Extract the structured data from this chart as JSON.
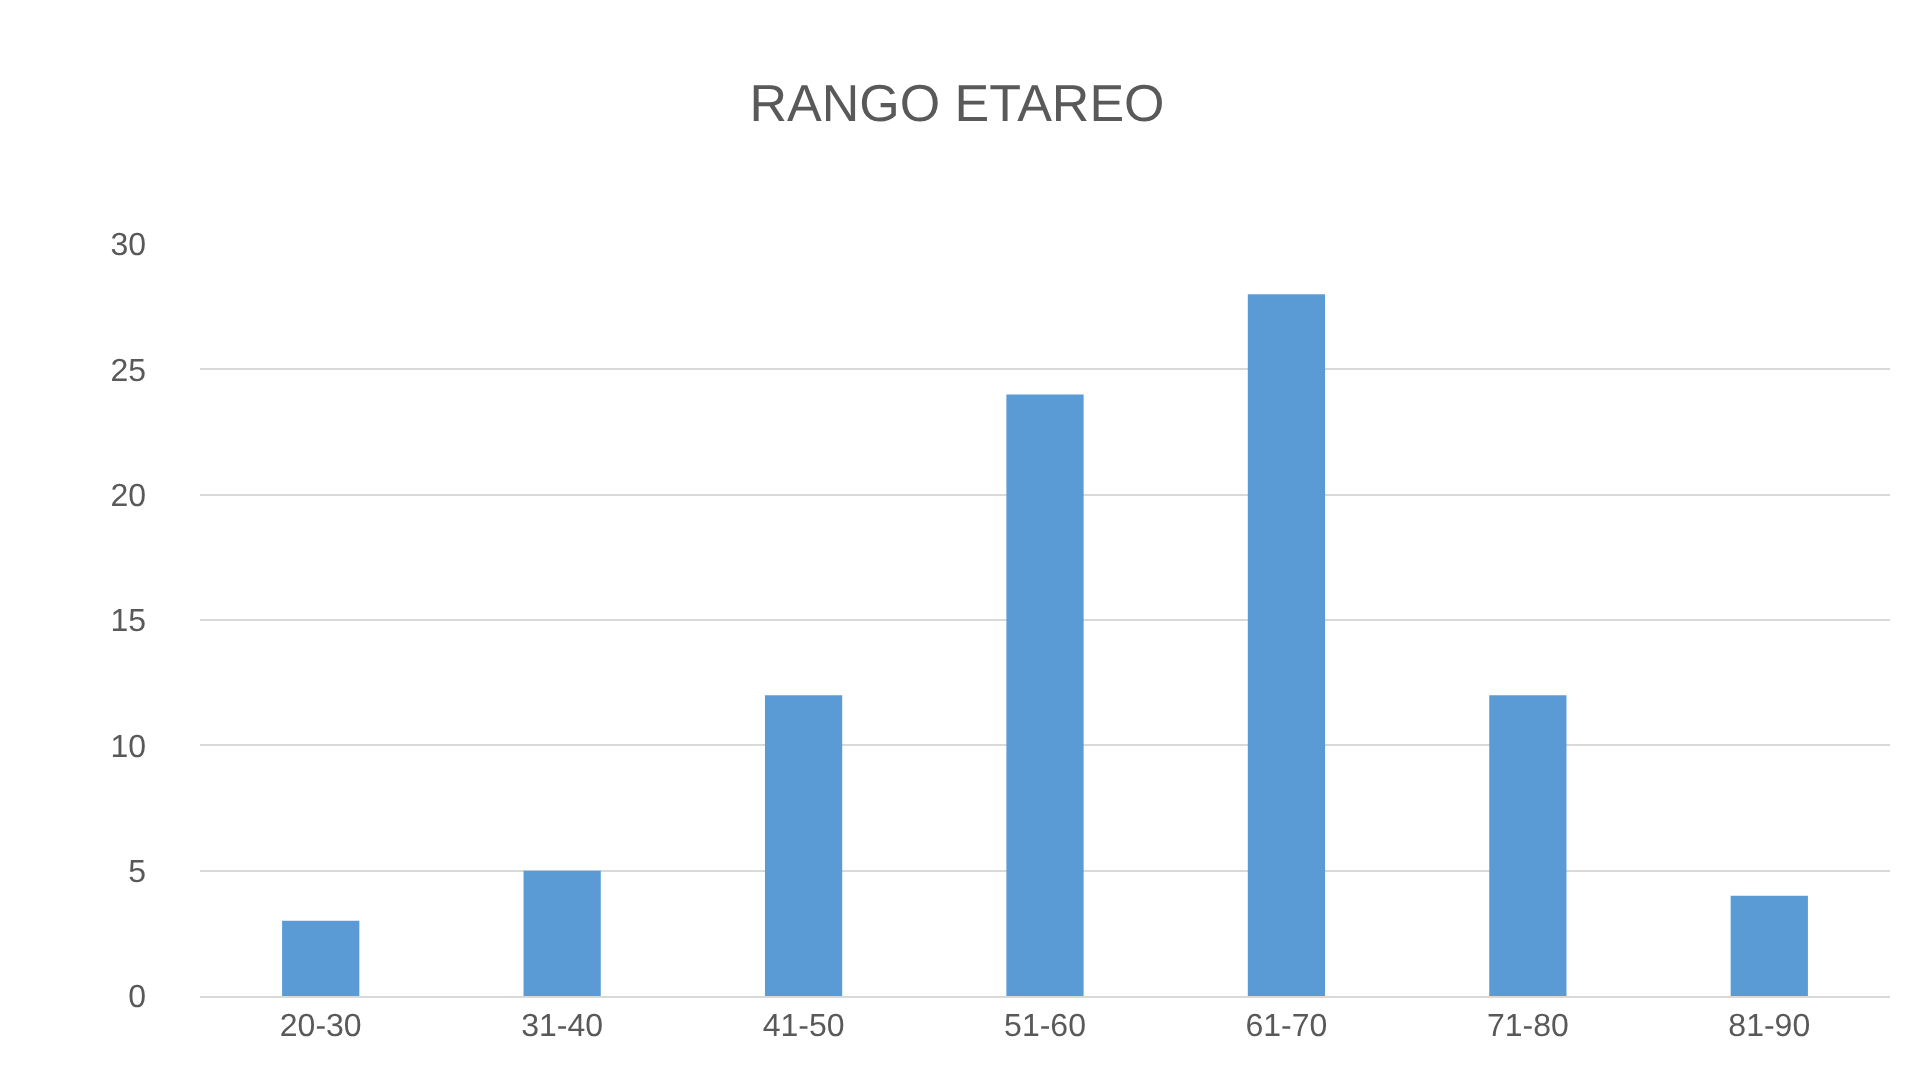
{
  "chart_data": {
    "type": "bar",
    "title": "RANGO ETAREO",
    "categories": [
      "20-30",
      "31-40",
      "41-50",
      "51-60",
      "61-70",
      "71-80",
      "81-90"
    ],
    "values": [
      3,
      5,
      12,
      24,
      28,
      12,
      4
    ],
    "color": "#5b9bd5",
    "ylim": [
      0,
      30
    ],
    "yticks": [
      0,
      5,
      10,
      15,
      20,
      25,
      30
    ],
    "grid": "y"
  }
}
